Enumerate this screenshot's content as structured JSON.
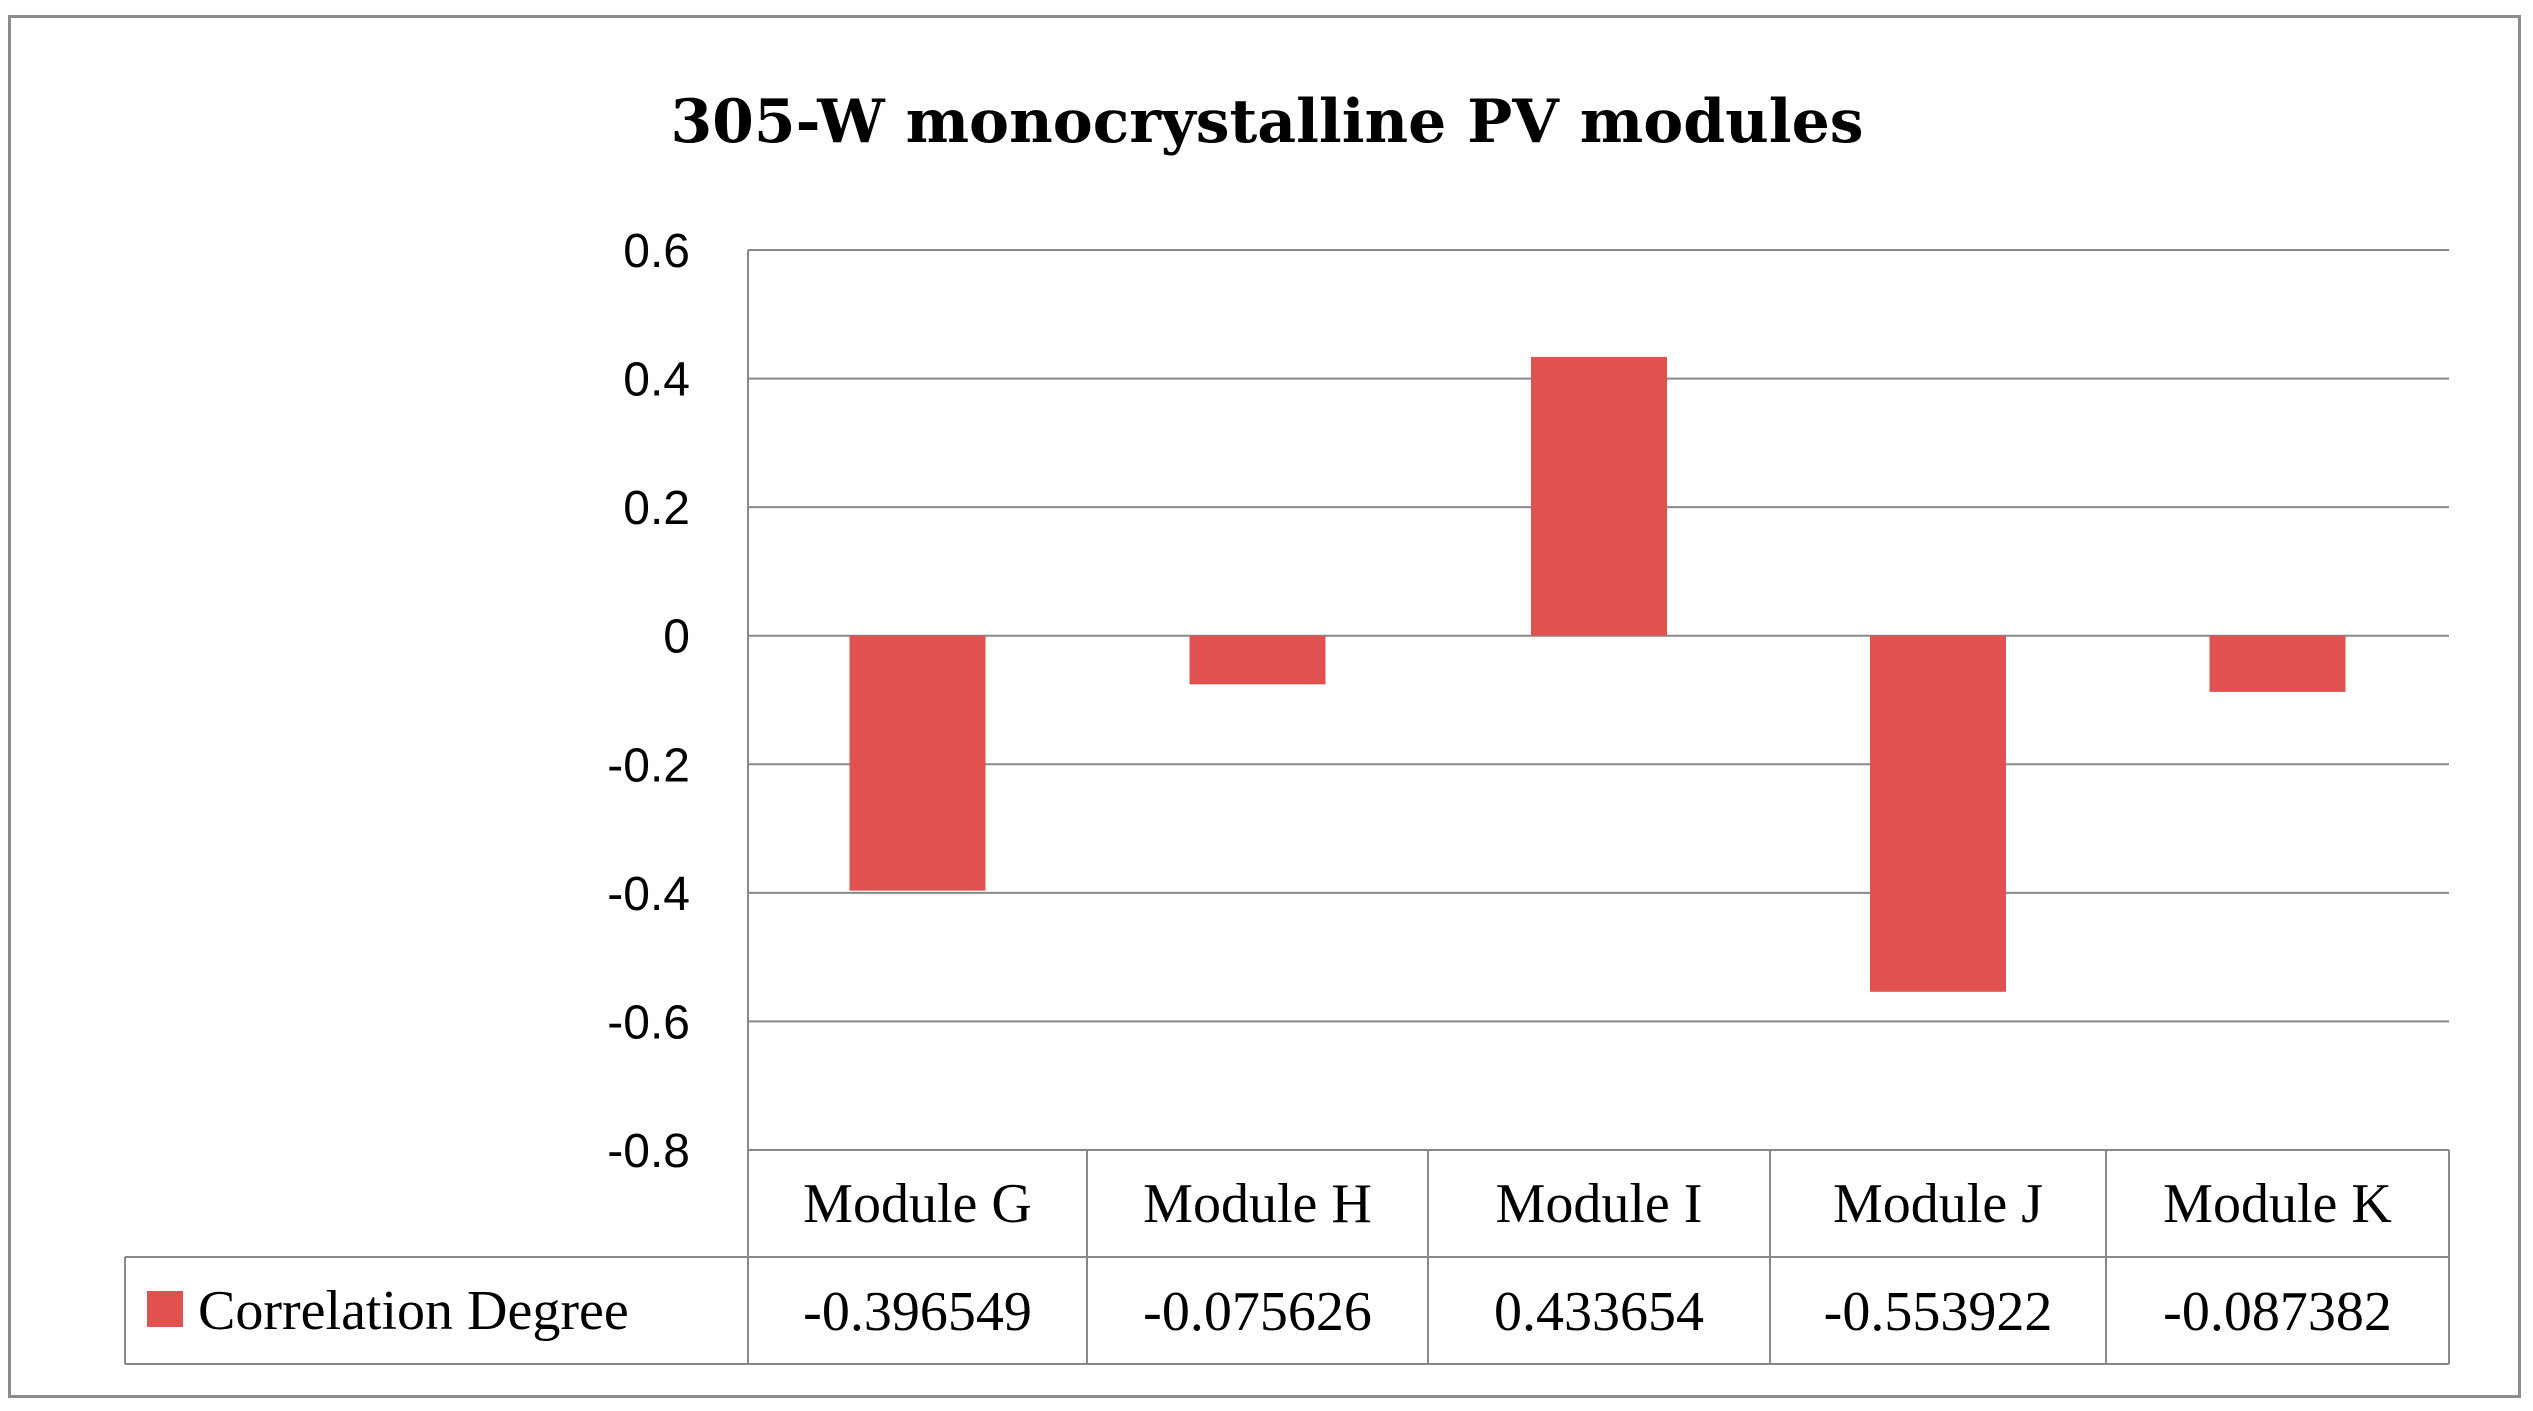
{
  "chart_data": {
    "type": "bar",
    "title": "305-W monocrystalline  PV modules",
    "categories": [
      "Module G",
      "Module H",
      "Module I",
      "Module J",
      "Module K"
    ],
    "series": [
      {
        "name": "Correlation Degree",
        "values": [
          -0.396549,
          -0.075626,
          0.433654,
          -0.553922,
          -0.087382
        ],
        "labels": [
          "-0.396549",
          "-0.075626",
          "0.433654",
          "-0.553922",
          "-0.087382"
        ],
        "color": "#e05150"
      }
    ],
    "ylim": [
      -0.8,
      0.6
    ],
    "yticks": [
      0.6,
      0.4,
      0.2,
      0,
      -0.2,
      -0.4,
      -0.6,
      -0.8
    ],
    "ytick_labels": [
      "0.6",
      "0.4",
      "0.2",
      "0",
      "-0.2",
      "-0.4",
      "-0.6",
      "-0.8"
    ],
    "grid": true,
    "legend": "data-table"
  }
}
